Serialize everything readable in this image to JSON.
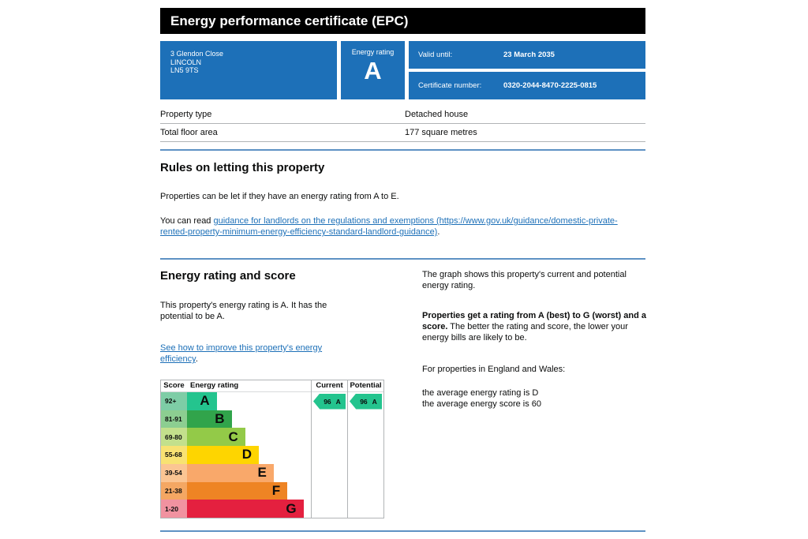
{
  "page": {
    "bg": "#ffffff",
    "text_color": "#0b0c0c",
    "accent_blue": "#1d70b8",
    "divider_blue": "#5e92c4",
    "border_gray": "#b1b4b6",
    "link_blue": "#1d70b8",
    "header_bg": "#000000"
  },
  "header": {
    "title": "Energy performance certificate (EPC)"
  },
  "certificate": {
    "address_lines": [
      "3 Glendon Close",
      "LINCOLN",
      "LN5 9TS"
    ],
    "energy_rating_label": "Energy rating",
    "energy_rating_value": "A",
    "valid_until_label": "Valid until:",
    "valid_until_value": "23 March 2035",
    "certificate_number_label": "Certificate number:",
    "certificate_number_value": "0320-2044-8470-2225-0815"
  },
  "property_table": {
    "rows": [
      {
        "label": "Property type",
        "value": "Detached house"
      },
      {
        "label": "Total floor area",
        "value": "177 square metres"
      }
    ]
  },
  "rules_section": {
    "heading": "Rules on letting this property",
    "p1": "Properties can be let if they have an energy rating from A to E.",
    "p2_prefix": "You can read ",
    "p2_link": "guidance for landlords on the regulations and exemptions (https://www.gov.uk/guidance/domestic-private-rented-property-minimum-energy-efficiency-standard-landlord-guidance)",
    "p2_suffix": "."
  },
  "rating_section": {
    "heading": "Energy rating and score",
    "p1": "This property's energy rating is A. It has the potential to be A.",
    "link": "See how to improve this property's energy efficiency",
    "link_suffix": ".",
    "right": {
      "p1": "The graph shows this property's current and potential energy rating.",
      "p2_bold": "Properties get a rating from A (best) to G (worst) and a score.",
      "p2_rest": " The better the rating and score, the lower your energy bills are likely to be.",
      "p3": "For properties in England and Wales:",
      "avg_rating": "the average energy rating is D",
      "avg_score": "the average energy score is 60"
    }
  },
  "chart_data": {
    "type": "bar",
    "title": "Energy rating and score graph",
    "legend_position": "none",
    "headers": {
      "score": "Score",
      "rating": "Energy rating",
      "current": "Current",
      "potential": "Potential"
    },
    "bands": [
      {
        "score": "92+",
        "letter": "A",
        "color": "#24c48e",
        "tint": "#7ecda6",
        "width_pct": 24
      },
      {
        "score": "81-91",
        "letter": "B",
        "color": "#31a44b",
        "tint": "#8cce91",
        "width_pct": 36
      },
      {
        "score": "69-80",
        "letter": "C",
        "color": "#93ca48",
        "tint": "#c3e08c",
        "width_pct": 47
      },
      {
        "score": "55-68",
        "letter": "D",
        "color": "#fed500",
        "tint": "#f8e272",
        "width_pct": 58
      },
      {
        "score": "39-54",
        "letter": "E",
        "color": "#f9a86a",
        "tint": "#fbc593",
        "width_pct": 70
      },
      {
        "score": "21-38",
        "letter": "F",
        "color": "#ee8424",
        "tint": "#f4a763",
        "width_pct": 81
      },
      {
        "score": "1-20",
        "letter": "G",
        "color": "#e4203f",
        "tint": "#f192a0",
        "width_pct": 94
      }
    ],
    "current": {
      "score": "96",
      "letter": "A",
      "color": "#24c48e"
    },
    "potential": {
      "score": "96",
      "letter": "A",
      "color": "#24c48e"
    }
  }
}
